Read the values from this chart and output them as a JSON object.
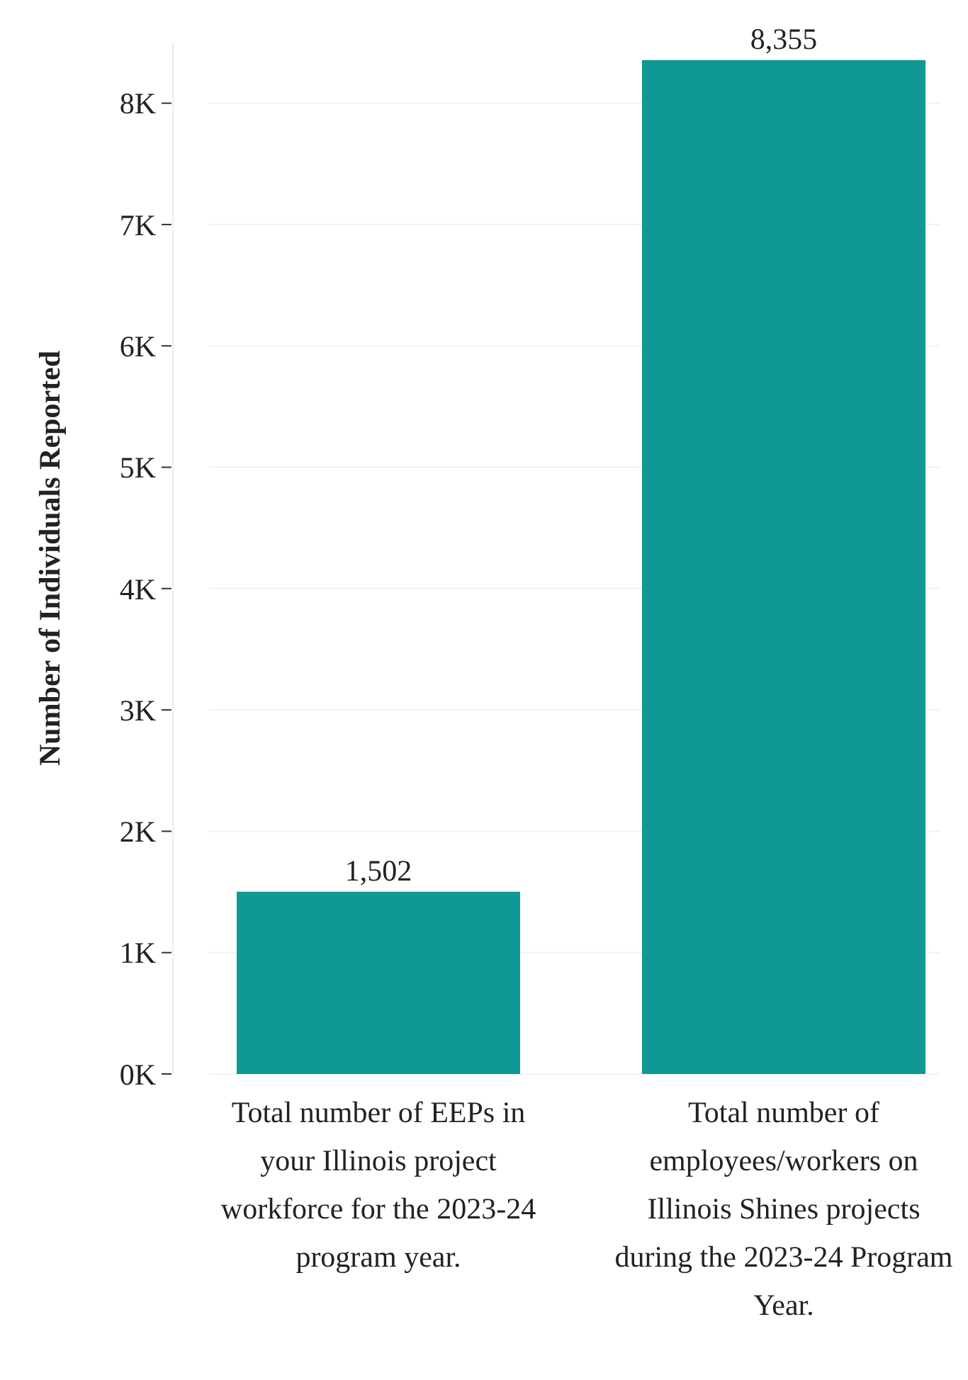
{
  "chart_data": {
    "type": "bar",
    "ylabel": "Number of Individuals Reported",
    "categories": [
      "Total number of EEPs in your Illinois project workforce for the 2023-24 program year.",
      "Total number of employees/workers on Illinois Shines projects during the 2023-24 Program Year."
    ],
    "values": [
      1502,
      8355
    ],
    "color": "#109894",
    "value_labels": [
      "1,502",
      "8,355"
    ],
    "ylim": [
      0,
      8500
    ],
    "grid": "y",
    "yticks": [
      {
        "value": 0,
        "label": "0K"
      },
      {
        "value": 1000,
        "label": "1K"
      },
      {
        "value": 2000,
        "label": "2K"
      },
      {
        "value": 3000,
        "label": "3K"
      },
      {
        "value": 4000,
        "label": "4K"
      },
      {
        "value": 5000,
        "label": "5K"
      },
      {
        "value": 6000,
        "label": "6K"
      },
      {
        "value": 7000,
        "label": "7K"
      },
      {
        "value": 8000,
        "label": "8K"
      }
    ]
  }
}
